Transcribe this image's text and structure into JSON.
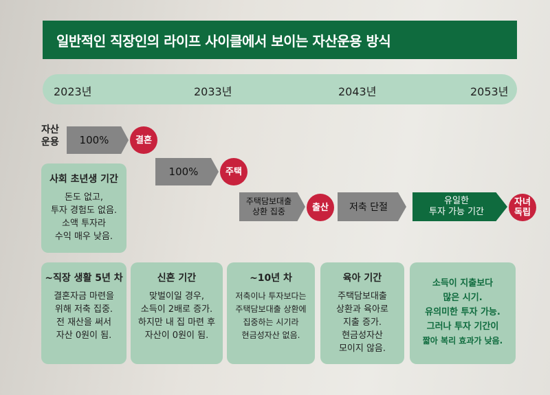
{
  "title": "일반적인 직장인의 라이프 사이클에서 보이는 자산운용 방식",
  "years": [
    "2023년",
    "2033년",
    "2043년",
    "2053년"
  ],
  "asset_label": [
    "자산",
    "운용"
  ],
  "arrows": {
    "a1": "100%",
    "a2": "100%",
    "a3": [
      "주택담보대출",
      "상환 집중"
    ],
    "a4": "저축 단절",
    "a5": [
      "유일한",
      "투자 가능 기간"
    ]
  },
  "events": {
    "e1": "결혼",
    "e2": "주택",
    "e3": "출산",
    "e4": [
      "자녀",
      "독립"
    ]
  },
  "boxes": {
    "b0": {
      "title": "사회 초년생 기간",
      "lines": [
        "돈도 없고,",
        "투자 경험도 없음.",
        "소액 투자라",
        "수익 매우 낮음."
      ]
    },
    "b1": {
      "title": "~직장 생활 5년 차",
      "lines": [
        "결혼자금 마련을",
        "위해 저축 집중.",
        "전 재산을 써서",
        "자산 0원이 됨."
      ]
    },
    "b2": {
      "title": "신혼 기간",
      "lines": [
        "맞벌이일 경우,",
        "소득이 2배로 증가.",
        "하지만 내 집 마련 후",
        "자산이 0원이 됨."
      ]
    },
    "b3": {
      "title": "~10년 차",
      "lines": [
        "저축이나 투자보다는",
        "주택담보대출 상환에",
        "집중하는 시기라",
        "현금성자산 없음."
      ]
    },
    "b4": {
      "title": "육아 기간",
      "lines": [
        "주택담보대출",
        "상환과 육아로",
        "지출 증가.",
        "현금성자산",
        "모이지 않음."
      ]
    },
    "b5": {
      "lines": [
        "소득이 지출보다",
        "많은 시기.",
        "유의미한 투자 가능.",
        "그러나 투자 기간이",
        "짧아 복리 효과가 낮음."
      ]
    }
  },
  "colors": {
    "header": "#0f6b3e",
    "timeline": "#b3d8c3",
    "box": "#a9cfb8",
    "arrow": "#858585",
    "event": "#c8223d"
  }
}
